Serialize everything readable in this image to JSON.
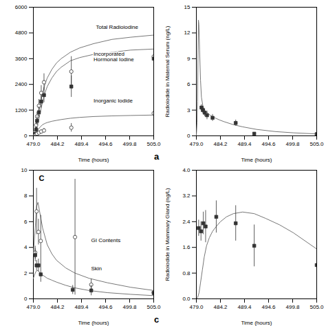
{
  "chart_data": [
    {
      "type": "line",
      "xlabel": "Time (hours)",
      "xlim": [
        479.0,
        505.0
      ],
      "xticks": [
        {
          "value": 479.0,
          "label": "479.0"
        },
        484.2,
        489.4,
        494.6,
        499.8,
        {
          "value": 505.0,
          "label": "505.0"
        }
      ],
      "ylim": [
        0,
        6000
      ],
      "yticks": [
        0,
        1200,
        2400,
        3600,
        4800,
        6000
      ],
      "series": [
        {
          "type": "line",
          "color": "#777777",
          "x": [
            479.0,
            479.3,
            479.6,
            480.0,
            480.5,
            481.0,
            481.5,
            482.0,
            483.0,
            484.0,
            485.0,
            487.0,
            489.0,
            492.0,
            496.0,
            500.0,
            505.0
          ],
          "values": [
            0,
            150,
            450,
            900,
            1500,
            2000,
            2400,
            2700,
            3100,
            3400,
            3600,
            3900,
            4100,
            4300,
            4500,
            4600,
            4700
          ]
        },
        {
          "type": "line",
          "color": "#777777",
          "x": [
            479.0,
            479.3,
            479.6,
            480.0,
            480.5,
            481.0,
            481.5,
            482.0,
            483.0,
            484.0,
            485.0,
            487.0,
            489.0,
            492.0,
            496.0,
            500.0,
            505.0
          ],
          "values": [
            0,
            80,
            250,
            600,
            1100,
            1600,
            2000,
            2300,
            2700,
            3000,
            3200,
            3500,
            3650,
            3800,
            3900,
            4000,
            4050
          ]
        },
        {
          "type": "line",
          "color": "#777777",
          "x": [
            479.0,
            479.3,
            479.6,
            480.0,
            480.5,
            481.0,
            481.5,
            482.0,
            483.0,
            484.0,
            485.0,
            487.0,
            489.0,
            492.0,
            496.0,
            500.0,
            505.0
          ],
          "values": [
            0,
            60,
            150,
            280,
            420,
            520,
            580,
            620,
            680,
            720,
            760,
            820,
            860,
            900,
            930,
            950,
            970
          ]
        },
        {
          "type": "scatter",
          "marker": "open-circle",
          "color": "#333333",
          "x": [
            479.4,
            479.6,
            479.8,
            480.2,
            480.7,
            481.3,
            487.2,
            505.0
          ],
          "values": [
            200,
            500,
            900,
            1400,
            2000,
            2500,
            3000,
            3700
          ],
          "yerr": [
            100,
            150,
            200,
            300,
            350,
            400,
            700,
            1200
          ]
        },
        {
          "type": "scatter",
          "marker": "square",
          "color": "#333333",
          "x": [
            479.4,
            479.6,
            479.8,
            480.2,
            480.7,
            481.3,
            487.2,
            505.0
          ],
          "values": [
            100,
            300,
            700,
            1100,
            1600,
            1900,
            2300,
            3600
          ],
          "yerr": [
            80,
            120,
            200,
            250,
            300,
            350,
            500,
            800
          ]
        },
        {
          "type": "scatter",
          "marker": "open-circle",
          "color": "#333333",
          "x": [
            479.4,
            479.6,
            479.8,
            480.2,
            480.7,
            481.3,
            487.2,
            505.0
          ],
          "values": [
            30,
            60,
            100,
            150,
            200,
            250,
            380,
            1050
          ],
          "yerr": [
            20,
            40,
            60,
            70,
            80,
            100,
            200,
            350
          ]
        }
      ],
      "annotations": [
        "Total Radioiodine",
        "Incorporated\nHormonal Iodine",
        "Inorganic Iodide",
        "a"
      ]
    },
    {
      "type": "line",
      "xlabel": "Time (hours)",
      "ylabel": "Radioiodide in Maternal Serum (ng/L)",
      "xlim": [
        479.0,
        505.0
      ],
      "xticks": [
        {
          "value": 479.0,
          "label": "479.0"
        },
        484.2,
        489.4,
        494.6,
        499.8,
        {
          "value": 505.0,
          "label": "505.0"
        }
      ],
      "ylim": [
        0,
        15
      ],
      "yticks": [
        0,
        3,
        6,
        9,
        12,
        15
      ],
      "series": [
        {
          "type": "line",
          "color": "#777777",
          "x": [
            479.0,
            479.15,
            479.25,
            479.35,
            479.45,
            479.55,
            479.7,
            479.9,
            480.1,
            480.4,
            480.8,
            481.3,
            482.0,
            483.0,
            484.0,
            485.0,
            487.0,
            489.0,
            492.0,
            496.0,
            500.0,
            505.0
          ],
          "values": [
            0,
            1.5,
            4.0,
            9.0,
            13.5,
            13.0,
            10.0,
            6.5,
            4.5,
            3.5,
            3.0,
            2.7,
            2.4,
            2.1,
            1.85,
            1.65,
            1.3,
            1.05,
            0.75,
            0.5,
            0.35,
            0.22
          ]
        },
        {
          "type": "scatter",
          "marker": "square",
          "color": "#333333",
          "x": [
            480.1,
            480.4,
            480.8,
            481.3,
            482.5,
            487.5,
            491.5,
            505.0
          ],
          "values": [
            3.3,
            3.0,
            2.7,
            2.4,
            2.1,
            1.5,
            0.25,
            0.2
          ],
          "yerr": [
            0.35,
            0.4,
            0.45,
            0.5,
            0.4,
            0.35,
            0.08,
            0.08
          ]
        }
      ]
    },
    {
      "type": "line",
      "xlabel": "Time (hours)",
      "xlim": [
        479.0,
        505.0
      ],
      "xticks": [
        {
          "value": 479.0,
          "label": "479.0"
        },
        484.2,
        489.4,
        494.6,
        499.8,
        {
          "value": 505.0,
          "label": "505.0"
        }
      ],
      "ylim": [
        0,
        10
      ],
      "yticks": [
        0,
        2,
        4,
        6,
        8,
        10
      ],
      "series": [
        {
          "type": "line",
          "color": "#777777",
          "x": [
            479.0,
            479.4,
            479.7,
            480.0,
            480.5,
            481.0,
            482.0,
            483.0,
            484.0,
            486.0,
            488.0,
            491.0,
            495.0,
            500.0,
            505.0
          ],
          "values": [
            3.5,
            5.5,
            7.2,
            7.5,
            6.5,
            5.5,
            4.2,
            3.5,
            3.0,
            2.4,
            2.0,
            1.6,
            1.25,
            0.9,
            0.65
          ]
        },
        {
          "type": "line",
          "color": "#777777",
          "x": [
            479.0,
            479.4,
            479.7,
            480.0,
            480.5,
            481.0,
            482.0,
            483.0,
            484.0,
            486.0,
            488.0,
            491.0,
            495.0,
            500.0,
            505.0
          ],
          "values": [
            1.6,
            2.0,
            2.2,
            2.2,
            2.0,
            1.85,
            1.6,
            1.45,
            1.3,
            1.05,
            0.85,
            0.65,
            0.48,
            0.35,
            0.25
          ]
        },
        {
          "type": "scatter",
          "marker": "open-circle",
          "color": "#333333",
          "x": [
            479.4,
            479.7,
            480.1,
            480.6,
            488.0,
            491.5,
            505.0
          ],
          "values": [
            3.6,
            6.8,
            5.2,
            4.5,
            4.8,
            1.1,
            0.5
          ],
          "yerr": [
            0.5,
            1.8,
            1.0,
            2.0,
            4.5,
            0.45,
            0.15
          ]
        },
        {
          "type": "scatter",
          "marker": "square",
          "color": "#333333",
          "x": [
            479.4,
            479.7,
            480.1,
            480.6,
            487.5,
            491.5,
            505.0
          ],
          "values": [
            3.4,
            2.6,
            2.6,
            1.9,
            0.7,
            0.65,
            0.45
          ],
          "yerr": [
            0.5,
            0.4,
            0.5,
            0.6,
            0.35,
            0.4,
            0.1
          ]
        }
      ],
      "annotations": [
        "C",
        "GI Contents",
        "Skin",
        "c"
      ]
    },
    {
      "type": "line",
      "xlabel": "Time (hours)",
      "ylabel": "Radioiodide in Mammary Gland (ng/L)",
      "xlim": [
        479.0,
        505.0
      ],
      "xticks": [
        {
          "value": 479.0,
          "label": "479.0"
        },
        484.2,
        489.4,
        494.6,
        499.8,
        {
          "value": 505.0,
          "label": "505.0"
        }
      ],
      "ylim": [
        0,
        4.0
      ],
      "yticks": [
        {
          "value": 0.0,
          "label": "0.0"
        },
        0.8,
        1.6,
        2.4,
        3.2,
        {
          "value": 4.0,
          "label": "4.0"
        }
      ],
      "series": [
        {
          "type": "line",
          "color": "#777777",
          "x": [
            479.0,
            479.3,
            479.6,
            479.9,
            480.3,
            480.7,
            481.2,
            481.8,
            482.5,
            483.3,
            484.2,
            485.5,
            487.0,
            489.0,
            491.5,
            494.0,
            497.0,
            500.0,
            503.0,
            505.0
          ],
          "values": [
            0,
            0.05,
            0.2,
            0.5,
            0.9,
            1.3,
            1.65,
            1.9,
            2.1,
            2.25,
            2.4,
            2.55,
            2.65,
            2.7,
            2.65,
            2.5,
            2.3,
            2.05,
            1.75,
            1.55
          ]
        },
        {
          "type": "scatter",
          "marker": "square",
          "color": "#333333",
          "x": [
            479.5,
            480.0,
            480.5,
            481.0,
            483.3,
            487.5,
            491.5,
            505.0
          ],
          "values": [
            2.2,
            2.1,
            2.35,
            2.25,
            2.55,
            2.35,
            1.65,
            1.05
          ],
          "yerr": [
            0.25,
            0.3,
            0.35,
            0.5,
            0.5,
            0.55,
            0.65,
            0.35
          ]
        }
      ]
    }
  ]
}
